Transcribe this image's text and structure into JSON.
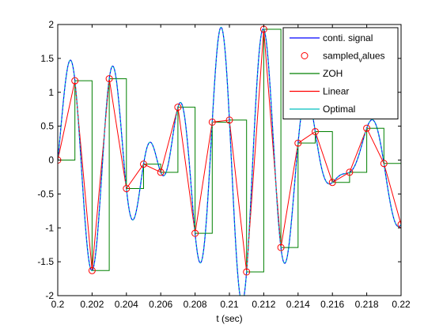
{
  "chart_data": {
    "type": "line",
    "title": "",
    "xlabel": "t (sec)",
    "ylabel": "",
    "xlim": [
      0.2,
      0.22
    ],
    "ylim": [
      -2,
      2
    ],
    "xticks": [
      0.2,
      0.202,
      0.204,
      0.206,
      0.208,
      0.21,
      0.212,
      0.214,
      0.216,
      0.218,
      0.22
    ],
    "xtick_labels": [
      "0.2",
      "0.202",
      "0.204",
      "0.206",
      "0.208",
      "0.21",
      "0.212",
      "0.214",
      "0.216",
      "0.218",
      "0.22"
    ],
    "yticks": [
      -2,
      -1.5,
      -1,
      -0.5,
      0,
      0.5,
      1,
      1.5,
      2
    ],
    "ytick_labels": [
      "-2",
      "-1.5",
      "-1",
      "-0.5",
      "0",
      "0.5",
      "1",
      "1.5",
      "2"
    ],
    "grid": false,
    "legend_position": "top-right",
    "legend": [
      {
        "label": "conti. signal",
        "style": "line",
        "color": "#0000ff"
      },
      {
        "label": "sampled",
        "sub": "v",
        "suffix": "alues",
        "style": "marker",
        "color": "#ff0000"
      },
      {
        "label": "ZOH",
        "style": "line",
        "color": "#008000"
      },
      {
        "label": "Linear",
        "style": "line",
        "color": "#ff0000"
      },
      {
        "label": "Optimal",
        "style": "line",
        "color": "#00bfbf"
      }
    ],
    "samples": {
      "x": [
        0.2,
        0.201,
        0.202,
        0.203,
        0.204,
        0.205,
        0.206,
        0.207,
        0.208,
        0.209,
        0.21,
        0.211,
        0.212,
        0.213,
        0.214,
        0.215,
        0.216,
        0.217,
        0.218,
        0.219,
        0.22
      ],
      "y": [
        0.0,
        1.17,
        -1.63,
        1.2,
        -0.42,
        -0.06,
        -0.18,
        0.78,
        -1.08,
        0.56,
        0.59,
        -1.65,
        1.93,
        -1.29,
        0.25,
        0.42,
        -0.33,
        -0.18,
        0.47,
        -0.05,
        -0.95
      ]
    },
    "series": [
      {
        "kind": "continuous",
        "color": "#0000ff"
      },
      {
        "kind": "marker",
        "color": "#ff0000"
      },
      {
        "kind": "zoh",
        "color": "#008000"
      },
      {
        "kind": "linear",
        "color": "#ff0000"
      },
      {
        "kind": "optimal",
        "color": "#00bfbf"
      }
    ]
  }
}
